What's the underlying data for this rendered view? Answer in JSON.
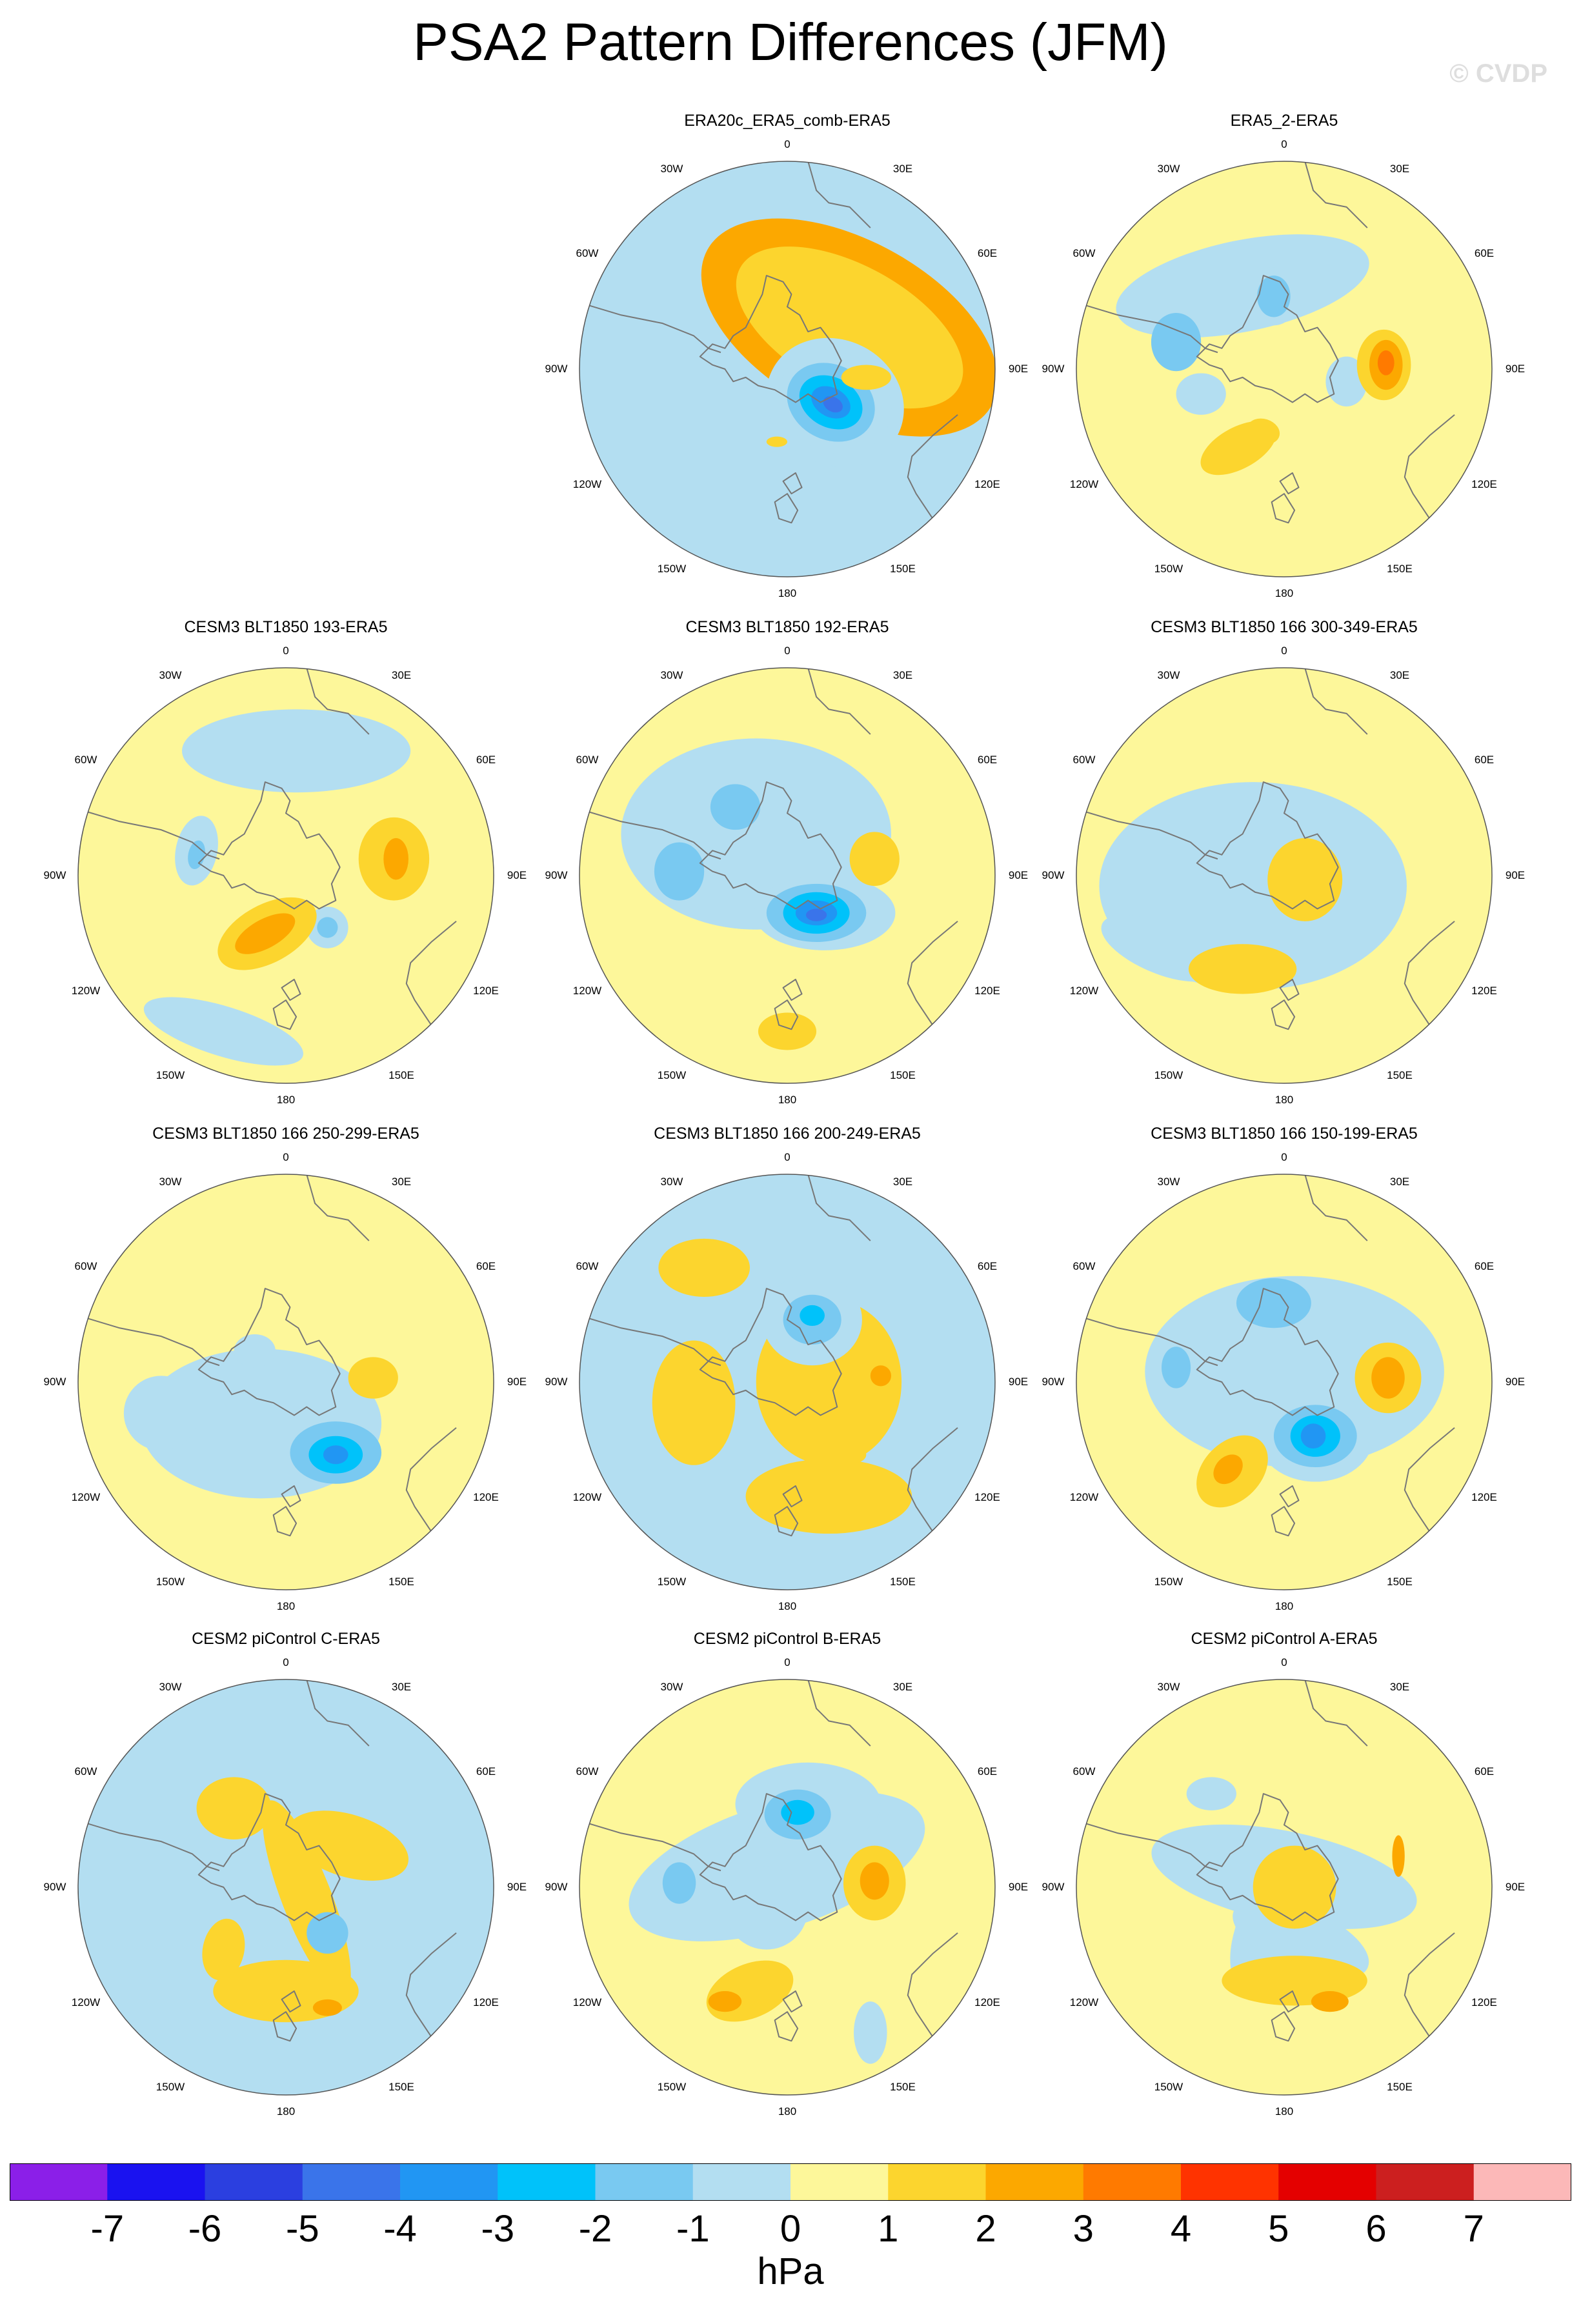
{
  "title": "PSA2 Pattern Differences (JFM)",
  "watermark": "© CVDP",
  "colors": {
    "-7.5": "#8b1fe8",
    "-6.5": "#1a12f0",
    "-5.5": "#2b3fe0",
    "-4.5": "#3a74ea",
    "-3.5": "#2196f3",
    "-2.5": "#00c2fa",
    "-1.5": "#79c9f1",
    "-0.5": "#b3def1",
    "0.5": "#fdf79a",
    "1.5": "#fcd52e",
    "2.5": "#fca800",
    "3.5": "#ff7a00",
    "4.5": "#ff3300",
    "5.5": "#e40000",
    "6.5": "#cc1f1f",
    "7.5": "#fcb8b8",
    "coast": "#777777",
    "rim": "#555555"
  },
  "lon_labels": [
    "0",
    "30E",
    "60E",
    "90E",
    "120E",
    "150E",
    "180",
    "150W",
    "120W",
    "90W",
    "60W",
    "30W"
  ],
  "panels": [
    {
      "title": "ERA20c_ERA5_comb-ERA5",
      "base": "cool",
      "features": [
        [
          2,
          0.3,
          -0.2,
          0.78,
          0.42,
          0.5
        ],
        [
          1,
          0.3,
          -0.2,
          0.6,
          0.3,
          0.5
        ],
        [
          -1,
          0.23,
          0.16,
          0.34,
          0.3,
          0.5
        ],
        [
          -1,
          0.23,
          0.16,
          0.28,
          0.24,
          0.5
        ],
        [
          -2,
          0.21,
          0.16,
          0.22,
          0.18,
          0.5
        ],
        [
          -3,
          0.21,
          0.16,
          0.16,
          0.12,
          0.5
        ],
        [
          -4,
          0.21,
          0.16,
          0.1,
          0.07,
          0.5
        ],
        [
          -5,
          0.22,
          0.17,
          0.05,
          0.035,
          0.5
        ],
        [
          1,
          0.38,
          0.04,
          0.12,
          0.06,
          0
        ],
        [
          1,
          -0.05,
          0.35,
          0.05,
          0.025,
          0
        ]
      ]
    },
    {
      "title": "ERA5_2-ERA5",
      "base": "warm",
      "features": [
        [
          -1,
          -0.2,
          -0.4,
          0.62,
          0.22,
          -0.2
        ],
        [
          -1,
          -0.05,
          -0.35,
          0.12,
          0.14,
          0
        ],
        [
          -2,
          -0.05,
          -0.35,
          0.08,
          0.1,
          0
        ],
        [
          -2,
          -0.52,
          -0.13,
          0.12,
          0.14,
          0
        ],
        [
          -1,
          0.3,
          0.06,
          0.1,
          0.12,
          0
        ],
        [
          -1,
          -0.4,
          0.12,
          0.12,
          0.1,
          0
        ],
        [
          1,
          0.48,
          -0.02,
          0.13,
          0.17,
          0
        ],
        [
          2,
          0.49,
          -0.02,
          0.08,
          0.12,
          0
        ],
        [
          3,
          0.49,
          -0.03,
          0.04,
          0.06,
          0
        ],
        [
          1,
          -0.22,
          0.38,
          0.2,
          0.1,
          -0.5
        ],
        [
          1,
          -0.1,
          0.3,
          0.08,
          0.06,
          0.3
        ]
      ]
    },
    {
      "title": "CESM3 BLT1850 193-ERA5",
      "base": "warm",
      "features": [
        [
          -1,
          0.05,
          -0.6,
          0.55,
          0.2,
          0
        ],
        [
          -1,
          -0.43,
          -0.12,
          0.1,
          0.17,
          0.2
        ],
        [
          -2,
          -0.43,
          -0.1,
          0.04,
          0.07,
          0.2
        ],
        [
          -1,
          0.2,
          0.25,
          0.1,
          0.1,
          0
        ],
        [
          -2,
          0.2,
          0.25,
          0.05,
          0.05,
          0
        ],
        [
          -1,
          -0.3,
          0.75,
          0.4,
          0.12,
          0.3
        ],
        [
          1,
          0.52,
          -0.08,
          0.17,
          0.2,
          0
        ],
        [
          2,
          0.53,
          -0.08,
          0.06,
          0.1,
          0
        ],
        [
          1,
          -0.09,
          0.28,
          0.26,
          0.14,
          -0.5
        ],
        [
          2,
          -0.1,
          0.28,
          0.16,
          0.07,
          -0.5
        ]
      ]
    },
    {
      "title": "CESM3 BLT1850 192-ERA5",
      "base": "warm",
      "features": [
        [
          -1,
          -0.15,
          -0.2,
          0.65,
          0.46,
          0
        ],
        [
          -1,
          0.18,
          0.18,
          0.34,
          0.18,
          0
        ],
        [
          -2,
          -0.25,
          -0.33,
          0.12,
          0.11,
          0
        ],
        [
          -2,
          -0.52,
          -0.02,
          0.12,
          0.14,
          0
        ],
        [
          -2,
          0.14,
          0.18,
          0.24,
          0.14,
          0
        ],
        [
          -3,
          0.14,
          0.18,
          0.16,
          0.1,
          0
        ],
        [
          -4,
          0.14,
          0.18,
          0.1,
          0.06,
          0
        ],
        [
          -5,
          0.14,
          0.19,
          0.05,
          0.03,
          0
        ],
        [
          1,
          0.42,
          -0.08,
          0.12,
          0.13,
          0
        ],
        [
          1,
          0.0,
          0.75,
          0.14,
          0.09,
          0
        ]
      ]
    },
    {
      "title": "CESM3 BLT1850 166 300-349-ERA5",
      "base": "warm",
      "features": [
        [
          -1,
          -0.15,
          0.05,
          0.74,
          0.5,
          0
        ],
        [
          -1,
          -0.6,
          0.35,
          0.3,
          0.12,
          0.4
        ],
        [
          1,
          0.1,
          0.02,
          0.18,
          0.2,
          0
        ],
        [
          1,
          -0.2,
          0.45,
          0.26,
          0.12,
          0
        ]
      ]
    },
    {
      "title": "CESM3 BLT1850 166 250-299-ERA5",
      "base": "warm",
      "features": [
        [
          -1,
          -0.12,
          0.2,
          0.58,
          0.36,
          0
        ],
        [
          -1,
          -0.6,
          0.15,
          0.18,
          0.18,
          0
        ],
        [
          -2,
          0.24,
          0.34,
          0.22,
          0.15,
          0
        ],
        [
          -3,
          0.24,
          0.35,
          0.13,
          0.09,
          0
        ],
        [
          -4,
          0.24,
          0.35,
          0.06,
          0.045,
          0
        ],
        [
          -1,
          -0.15,
          -0.15,
          0.1,
          0.08,
          0
        ],
        [
          1,
          0.42,
          -0.02,
          0.12,
          0.1,
          0
        ]
      ]
    },
    {
      "title": "CESM3 BLT1850 166 200-249-ERA5",
      "base": "cool",
      "features": [
        [
          1,
          0.2,
          0.0,
          0.35,
          0.4,
          0
        ],
        [
          1,
          0.2,
          0.55,
          0.4,
          0.18,
          0
        ],
        [
          1,
          -0.45,
          0.1,
          0.2,
          0.3,
          0
        ],
        [
          -1,
          0.12,
          -0.3,
          0.24,
          0.22,
          0
        ],
        [
          -2,
          0.12,
          -0.3,
          0.14,
          0.12,
          0
        ],
        [
          -3,
          0.12,
          -0.32,
          0.06,
          0.05,
          0
        ],
        [
          1,
          -0.4,
          -0.55,
          0.22,
          0.14,
          0
        ],
        [
          2,
          0.45,
          -0.03,
          0.05,
          0.05,
          0
        ],
        [
          1,
          0.32,
          0.35,
          0.06,
          0.04,
          0
        ]
      ]
    },
    {
      "title": "CESM3 BLT1850 166 150-199-ERA5",
      "base": "warm",
      "features": [
        [
          -1,
          0.05,
          -0.05,
          0.72,
          0.46,
          0
        ],
        [
          -2,
          -0.05,
          -0.38,
          0.18,
          0.12,
          0
        ],
        [
          -2,
          -0.52,
          -0.07,
          0.07,
          0.1,
          0
        ],
        [
          -1,
          0.15,
          0.26,
          0.28,
          0.22,
          0
        ],
        [
          -2,
          0.15,
          0.26,
          0.2,
          0.15,
          0
        ],
        [
          -3,
          0.15,
          0.26,
          0.12,
          0.1,
          0
        ],
        [
          -4,
          0.14,
          0.26,
          0.06,
          0.06,
          0
        ],
        [
          1,
          0.5,
          -0.02,
          0.16,
          0.17,
          0
        ],
        [
          2,
          0.5,
          -0.02,
          0.08,
          0.1,
          0
        ],
        [
          1,
          -0.25,
          0.43,
          0.2,
          0.14,
          -0.8
        ],
        [
          2,
          -0.27,
          0.42,
          0.08,
          0.06,
          -0.8
        ]
      ]
    },
    {
      "title": "CESM2 piControl C-ERA5",
      "base": "cool",
      "features": [
        [
          1,
          0.3,
          -0.2,
          0.3,
          0.15,
          0.3
        ],
        [
          1,
          0.1,
          0.05,
          0.5,
          0.12,
          1.2
        ],
        [
          1,
          -0.25,
          -0.38,
          0.18,
          0.15,
          0
        ],
        [
          1,
          0.0,
          0.5,
          0.35,
          0.15,
          0
        ],
        [
          2,
          0.2,
          0.58,
          0.07,
          0.04,
          0
        ],
        [
          -2,
          0.2,
          0.22,
          0.1,
          0.1,
          0
        ],
        [
          1,
          -0.3,
          0.3,
          0.1,
          0.15,
          0.2
        ]
      ]
    },
    {
      "title": "CESM2 piControl B-ERA5",
      "base": "warm",
      "features": [
        [
          -1,
          -0.05,
          -0.1,
          0.74,
          0.3,
          -0.3
        ],
        [
          -1,
          0.1,
          -0.4,
          0.35,
          0.2,
          0
        ],
        [
          -2,
          0.05,
          -0.35,
          0.16,
          0.12,
          0
        ],
        [
          -3,
          0.05,
          -0.36,
          0.08,
          0.06,
          0
        ],
        [
          -1,
          -0.1,
          0.1,
          0.2,
          0.2,
          0
        ],
        [
          -1,
          0.4,
          0.7,
          0.08,
          0.15,
          0
        ],
        [
          -2,
          -0.52,
          -0.02,
          0.08,
          0.1,
          0
        ],
        [
          1,
          0.42,
          -0.02,
          0.15,
          0.18,
          0
        ],
        [
          2,
          0.42,
          -0.03,
          0.07,
          0.09,
          0
        ],
        [
          1,
          -0.18,
          0.5,
          0.22,
          0.13,
          -0.4
        ],
        [
          2,
          -0.3,
          0.55,
          0.08,
          0.05,
          0
        ]
      ]
    },
    {
      "title": "CESM2 piControl A-ERA5",
      "base": "warm",
      "features": [
        [
          -1,
          0.0,
          -0.05,
          0.65,
          0.22,
          0.2
        ],
        [
          -1,
          0.0,
          0.15,
          0.2,
          0.4,
          0.5
        ],
        [
          -1,
          0.08,
          0.25,
          0.35,
          0.15,
          0.4
        ],
        [
          1,
          0.05,
          0.45,
          0.35,
          0.12,
          0
        ],
        [
          1,
          0.05,
          0.0,
          0.2,
          0.2,
          0
        ],
        [
          2,
          0.22,
          0.55,
          0.09,
          0.05,
          0
        ],
        [
          2,
          0.55,
          -0.15,
          0.03,
          0.1,
          0
        ],
        [
          -1,
          -0.35,
          -0.45,
          0.12,
          0.08,
          0
        ]
      ]
    }
  ],
  "chart_data": {
    "type": "heatmap",
    "title": "PSA2 Pattern Differences (JFM)",
    "projection": "south polar stereographic",
    "variable": "PSA2 pattern difference",
    "units": "hPa",
    "colorbar_ticks": [
      "-7",
      "-6",
      "-5",
      "-4",
      "-3",
      "-2",
      "-1",
      "0",
      "1",
      "2",
      "3",
      "4",
      "5",
      "6",
      "7"
    ],
    "colorbar_bins": 16,
    "panels": [
      "ERA20c_ERA5_comb-ERA5",
      "ERA5_2-ERA5",
      "CESM3 BLT1850 193-ERA5",
      "CESM3 BLT1850 192-ERA5",
      "CESM3 BLT1850 166 300-349-ERA5",
      "CESM3 BLT1850 166 250-299-ERA5",
      "CESM3 BLT1850 166 200-249-ERA5",
      "CESM3 BLT1850 166 150-199-ERA5",
      "CESM2 piControl C-ERA5",
      "CESM2 piControl B-ERA5",
      "CESM2 piControl A-ERA5"
    ]
  }
}
